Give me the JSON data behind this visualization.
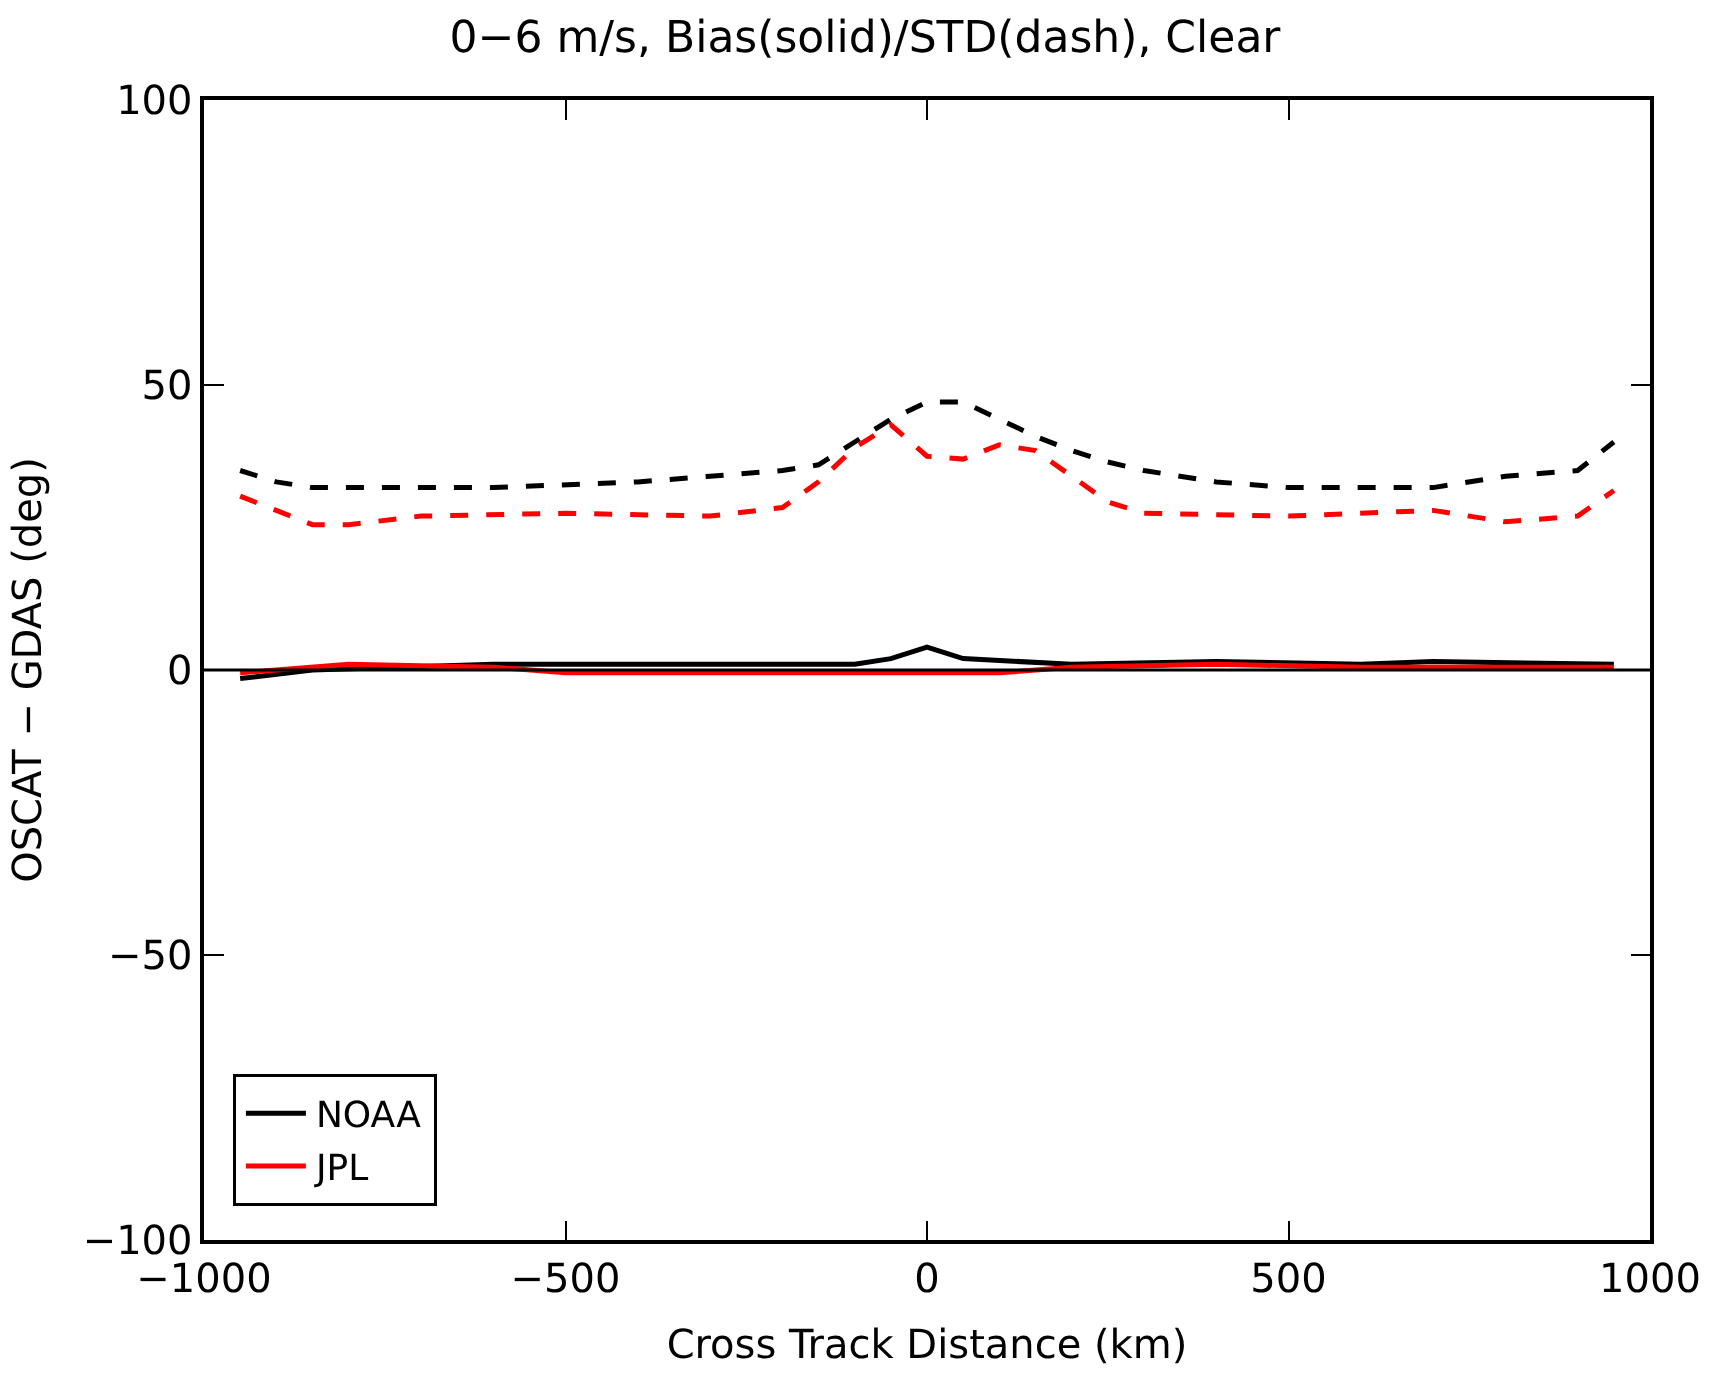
{
  "chart_data": {
    "type": "line",
    "title": "0−6 m/s, Bias(solid)/STD(dash), Clear",
    "xlabel": "Cross Track Distance (km)",
    "ylabel": "OSCAT − GDAS (deg)",
    "xlim": [
      -1000,
      1000
    ],
    "xticks": [
      -1000,
      -500,
      0,
      500,
      1000
    ],
    "ylim": [
      -100,
      100
    ],
    "yticks": [
      -100,
      -50,
      0,
      50,
      100
    ],
    "legend": "bottom left",
    "marker": "none",
    "ref_lines": [
      {
        "axis": "y",
        "value": 0,
        "color": "#000000"
      }
    ],
    "series": [
      {
        "name": "NOAA",
        "color": "#000000",
        "line_style": "solid",
        "x": [
          -950,
          -850,
          -600,
          -100,
          -50,
          0,
          50,
          200,
          400,
          600,
          700,
          950
        ],
        "values": [
          -1.5,
          0,
          1,
          1,
          2,
          4,
          2,
          1,
          1.5,
          1,
          1.5,
          1
        ]
      },
      {
        "name": "JPL",
        "color": "#ff0000",
        "line_style": "solid",
        "x": [
          -950,
          -800,
          -600,
          -500,
          -100,
          0,
          100,
          200,
          400,
          600,
          950
        ],
        "values": [
          -0.5,
          1,
          0.5,
          -0.5,
          -0.5,
          -0.5,
          -0.5,
          0.5,
          1,
          0.5,
          0.5
        ]
      },
      {
        "color": "#000000",
        "line_style": "dashed",
        "x": [
          -950,
          -900,
          -850,
          -600,
          -400,
          -300,
          -200,
          -150,
          -100,
          -50,
          0,
          50,
          100,
          150,
          200,
          250,
          300,
          400,
          500,
          700,
          800,
          900,
          950
        ],
        "values": [
          35,
          33,
          32,
          32,
          33,
          34,
          35,
          36,
          40,
          44,
          47,
          47,
          44,
          41,
          38.5,
          36.5,
          35,
          33,
          32,
          32,
          34,
          35,
          40
        ]
      },
      {
        "color": "#ff0000",
        "line_style": "dashed",
        "x": [
          -950,
          -900,
          -850,
          -800,
          -700,
          -500,
          -300,
          -200,
          -150,
          -100,
          -50,
          0,
          50,
          100,
          150,
          200,
          250,
          300,
          500,
          700,
          800,
          900,
          950
        ],
        "values": [
          30.5,
          28,
          25.5,
          25.5,
          27,
          27.5,
          27,
          28.5,
          33,
          39,
          43,
          37.5,
          37,
          39.5,
          38.5,
          34,
          29.5,
          27.5,
          27,
          28,
          26,
          27,
          31.5
        ]
      }
    ]
  }
}
